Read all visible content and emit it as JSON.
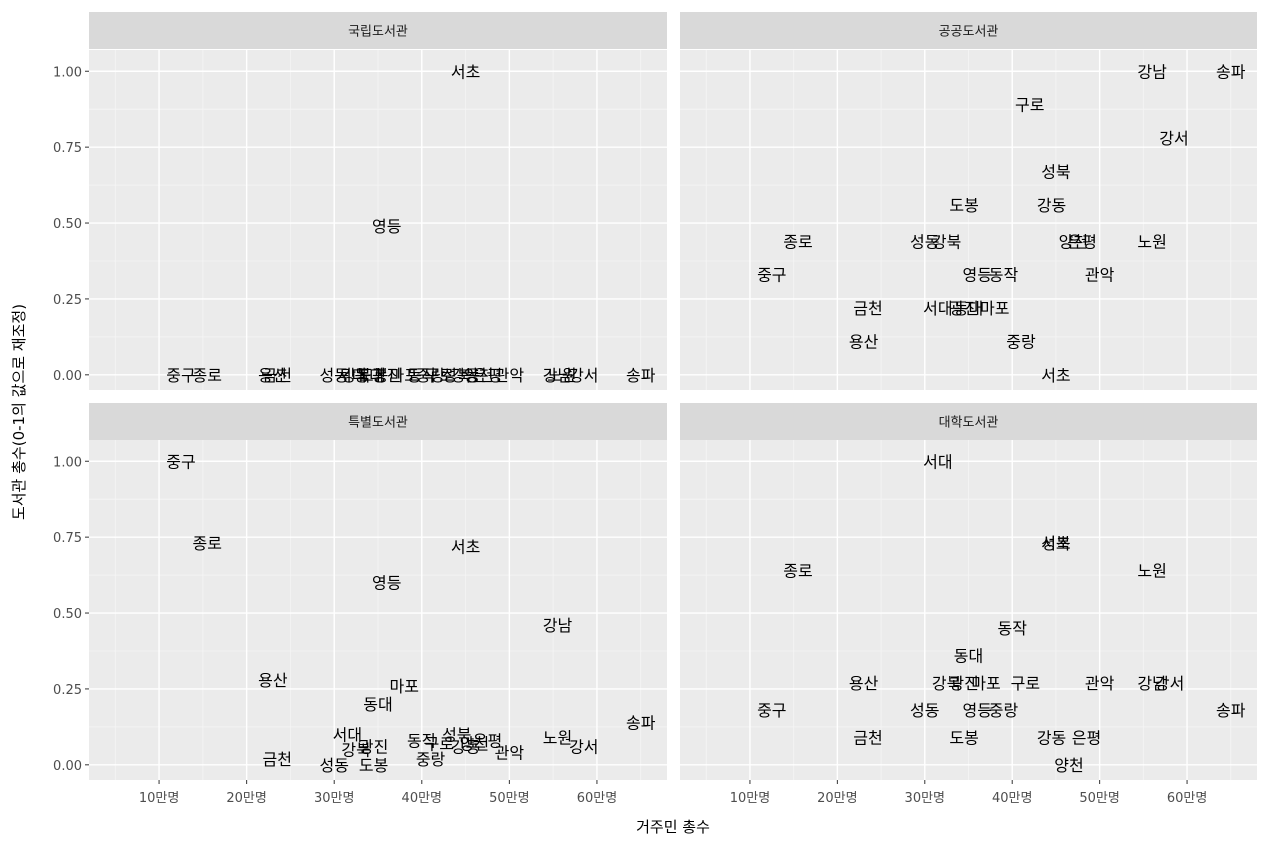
{
  "chart_data": {
    "type": "scatter",
    "mark": "text-label",
    "xlabel": "거주민 총수",
    "ylabel": "도서관 총수(0-1의 값으로 재조정)",
    "x_ticks": [
      {
        "value": 100000,
        "label": "10만명"
      },
      {
        "value": 200000,
        "label": "20만명"
      },
      {
        "value": 300000,
        "label": "30만명"
      },
      {
        "value": 400000,
        "label": "40만명"
      },
      {
        "value": 500000,
        "label": "50만명"
      },
      {
        "value": 600000,
        "label": "60만명"
      }
    ],
    "y_ticks": [
      {
        "value": 0,
        "label": "0.00"
      },
      {
        "value": 0.25,
        "label": "0.25"
      },
      {
        "value": 0.5,
        "label": "0.50"
      },
      {
        "value": 0.75,
        "label": "0.75"
      },
      {
        "value": 1,
        "label": "1.00"
      }
    ],
    "xlim": [
      20000,
      680000
    ],
    "ylim": [
      -0.05,
      1.07
    ],
    "grid": true,
    "panels": [
      {
        "title": "국립도서관",
        "points": [
          {
            "label": "서초",
            "x": 450000,
            "y": 1.0
          },
          {
            "label": "영등",
            "x": 360000,
            "y": 0.49
          },
          {
            "label": "중구",
            "x": 125000,
            "y": 0.0
          },
          {
            "label": "종로",
            "x": 155000,
            "y": 0.0
          },
          {
            "label": "용산",
            "x": 230000,
            "y": 0.0
          },
          {
            "label": "금천",
            "x": 235000,
            "y": 0.0
          },
          {
            "label": "성동",
            "x": 300000,
            "y": 0.0
          },
          {
            "label": "동대",
            "x": 340000,
            "y": 0.0
          },
          {
            "label": "광진",
            "x": 360000,
            "y": 0.0
          },
          {
            "label": "도봉",
            "x": 345000,
            "y": 0.0
          },
          {
            "label": "서대",
            "x": 320000,
            "y": 0.0
          },
          {
            "label": "강북",
            "x": 325000,
            "y": 0.0
          },
          {
            "label": "마포",
            "x": 380000,
            "y": 0.0
          },
          {
            "label": "동작",
            "x": 400000,
            "y": 0.0
          },
          {
            "label": "중랑",
            "x": 410000,
            "y": 0.0
          },
          {
            "label": "성북",
            "x": 440000,
            "y": 0.0
          },
          {
            "label": "강동",
            "x": 450000,
            "y": 0.0
          },
          {
            "label": "은평",
            "x": 475000,
            "y": 0.0
          },
          {
            "label": "양천",
            "x": 465000,
            "y": 0.0
          },
          {
            "label": "관악",
            "x": 500000,
            "y": 0.0
          },
          {
            "label": "구로",
            "x": 420000,
            "y": 0.0
          },
          {
            "label": "노원",
            "x": 560000,
            "y": 0.0
          },
          {
            "label": "강남",
            "x": 555000,
            "y": 0.0
          },
          {
            "label": "강서",
            "x": 585000,
            "y": 0.0
          },
          {
            "label": "송파",
            "x": 650000,
            "y": 0.0
          }
        ]
      },
      {
        "title": "공공도서관",
        "points": [
          {
            "label": "강남",
            "x": 560000,
            "y": 1.0
          },
          {
            "label": "송파",
            "x": 650000,
            "y": 1.0
          },
          {
            "label": "구로",
            "x": 420000,
            "y": 0.89
          },
          {
            "label": "강서",
            "x": 585000,
            "y": 0.78
          },
          {
            "label": "성북",
            "x": 450000,
            "y": 0.67
          },
          {
            "label": "도봉",
            "x": 345000,
            "y": 0.56
          },
          {
            "label": "강동",
            "x": 445000,
            "y": 0.56
          },
          {
            "label": "종로",
            "x": 155000,
            "y": 0.44
          },
          {
            "label": "성동",
            "x": 300000,
            "y": 0.44
          },
          {
            "label": "강북",
            "x": 325000,
            "y": 0.44
          },
          {
            "label": "양천",
            "x": 470000,
            "y": 0.44
          },
          {
            "label": "은평",
            "x": 480000,
            "y": 0.44
          },
          {
            "label": "노원",
            "x": 560000,
            "y": 0.44
          },
          {
            "label": "중구",
            "x": 125000,
            "y": 0.33
          },
          {
            "label": "영등",
            "x": 360000,
            "y": 0.33
          },
          {
            "label": "동작",
            "x": 390000,
            "y": 0.33
          },
          {
            "label": "관악",
            "x": 500000,
            "y": 0.33
          },
          {
            "label": "금천",
            "x": 235000,
            "y": 0.22
          },
          {
            "label": "서대",
            "x": 315000,
            "y": 0.22
          },
          {
            "label": "광진",
            "x": 345000,
            "y": 0.22
          },
          {
            "label": "동대",
            "x": 350000,
            "y": 0.22
          },
          {
            "label": "마포",
            "x": 380000,
            "y": 0.22
          },
          {
            "label": "용산",
            "x": 230000,
            "y": 0.11
          },
          {
            "label": "중랑",
            "x": 410000,
            "y": 0.11
          },
          {
            "label": "서초",
            "x": 450000,
            "y": 0.0
          }
        ]
      },
      {
        "title": "특별도서관",
        "points": [
          {
            "label": "중구",
            "x": 125000,
            "y": 1.0
          },
          {
            "label": "종로",
            "x": 155000,
            "y": 0.73
          },
          {
            "label": "서초",
            "x": 450000,
            "y": 0.72
          },
          {
            "label": "영등",
            "x": 360000,
            "y": 0.6
          },
          {
            "label": "강남",
            "x": 555000,
            "y": 0.46
          },
          {
            "label": "용산",
            "x": 230000,
            "y": 0.28
          },
          {
            "label": "마포",
            "x": 380000,
            "y": 0.26
          },
          {
            "label": "동대",
            "x": 350000,
            "y": 0.2
          },
          {
            "label": "송파",
            "x": 650000,
            "y": 0.14
          },
          {
            "label": "서대",
            "x": 315000,
            "y": 0.1
          },
          {
            "label": "노원",
            "x": 555000,
            "y": 0.09
          },
          {
            "label": "성북",
            "x": 440000,
            "y": 0.1
          },
          {
            "label": "동작",
            "x": 400000,
            "y": 0.08
          },
          {
            "label": "구로",
            "x": 420000,
            "y": 0.07
          },
          {
            "label": "강동",
            "x": 450000,
            "y": 0.06
          },
          {
            "label": "양천",
            "x": 460000,
            "y": 0.07
          },
          {
            "label": "은평",
            "x": 475000,
            "y": 0.08
          },
          {
            "label": "광진",
            "x": 345000,
            "y": 0.06
          },
          {
            "label": "강북",
            "x": 325000,
            "y": 0.05
          },
          {
            "label": "강서",
            "x": 585000,
            "y": 0.06
          },
          {
            "label": "관악",
            "x": 500000,
            "y": 0.04
          },
          {
            "label": "금천",
            "x": 235000,
            "y": 0.02
          },
          {
            "label": "중랑",
            "x": 410000,
            "y": 0.02
          },
          {
            "label": "성동",
            "x": 300000,
            "y": 0.0
          },
          {
            "label": "도봉",
            "x": 345000,
            "y": 0.0
          }
        ]
      },
      {
        "title": "대학도서관",
        "points": [
          {
            "label": "서대",
            "x": 315000,
            "y": 1.0
          },
          {
            "label": "성북",
            "x": 450000,
            "y": 0.73
          },
          {
            "label": "서초",
            "x": 450000,
            "y": 0.73
          },
          {
            "label": "종로",
            "x": 155000,
            "y": 0.64
          },
          {
            "label": "노원",
            "x": 560000,
            "y": 0.64
          },
          {
            "label": "동작",
            "x": 400000,
            "y": 0.45
          },
          {
            "label": "동대",
            "x": 350000,
            "y": 0.36
          },
          {
            "label": "용산",
            "x": 230000,
            "y": 0.27
          },
          {
            "label": "강북",
            "x": 325000,
            "y": 0.27
          },
          {
            "label": "광진",
            "x": 345000,
            "y": 0.27
          },
          {
            "label": "마포",
            "x": 370000,
            "y": 0.27
          },
          {
            "label": "구로",
            "x": 415000,
            "y": 0.27
          },
          {
            "label": "관악",
            "x": 500000,
            "y": 0.27
          },
          {
            "label": "강남",
            "x": 560000,
            "y": 0.27
          },
          {
            "label": "강서",
            "x": 580000,
            "y": 0.27
          },
          {
            "label": "중구",
            "x": 125000,
            "y": 0.18
          },
          {
            "label": "성동",
            "x": 300000,
            "y": 0.18
          },
          {
            "label": "영등",
            "x": 360000,
            "y": 0.18
          },
          {
            "label": "중랑",
            "x": 390000,
            "y": 0.18
          },
          {
            "label": "송파",
            "x": 650000,
            "y": 0.18
          },
          {
            "label": "금천",
            "x": 235000,
            "y": 0.09
          },
          {
            "label": "도봉",
            "x": 345000,
            "y": 0.09
          },
          {
            "label": "강동",
            "x": 445000,
            "y": 0.09
          },
          {
            "label": "은평",
            "x": 485000,
            "y": 0.09
          },
          {
            "label": "양천",
            "x": 465000,
            "y": 0.0
          }
        ]
      }
    ]
  }
}
